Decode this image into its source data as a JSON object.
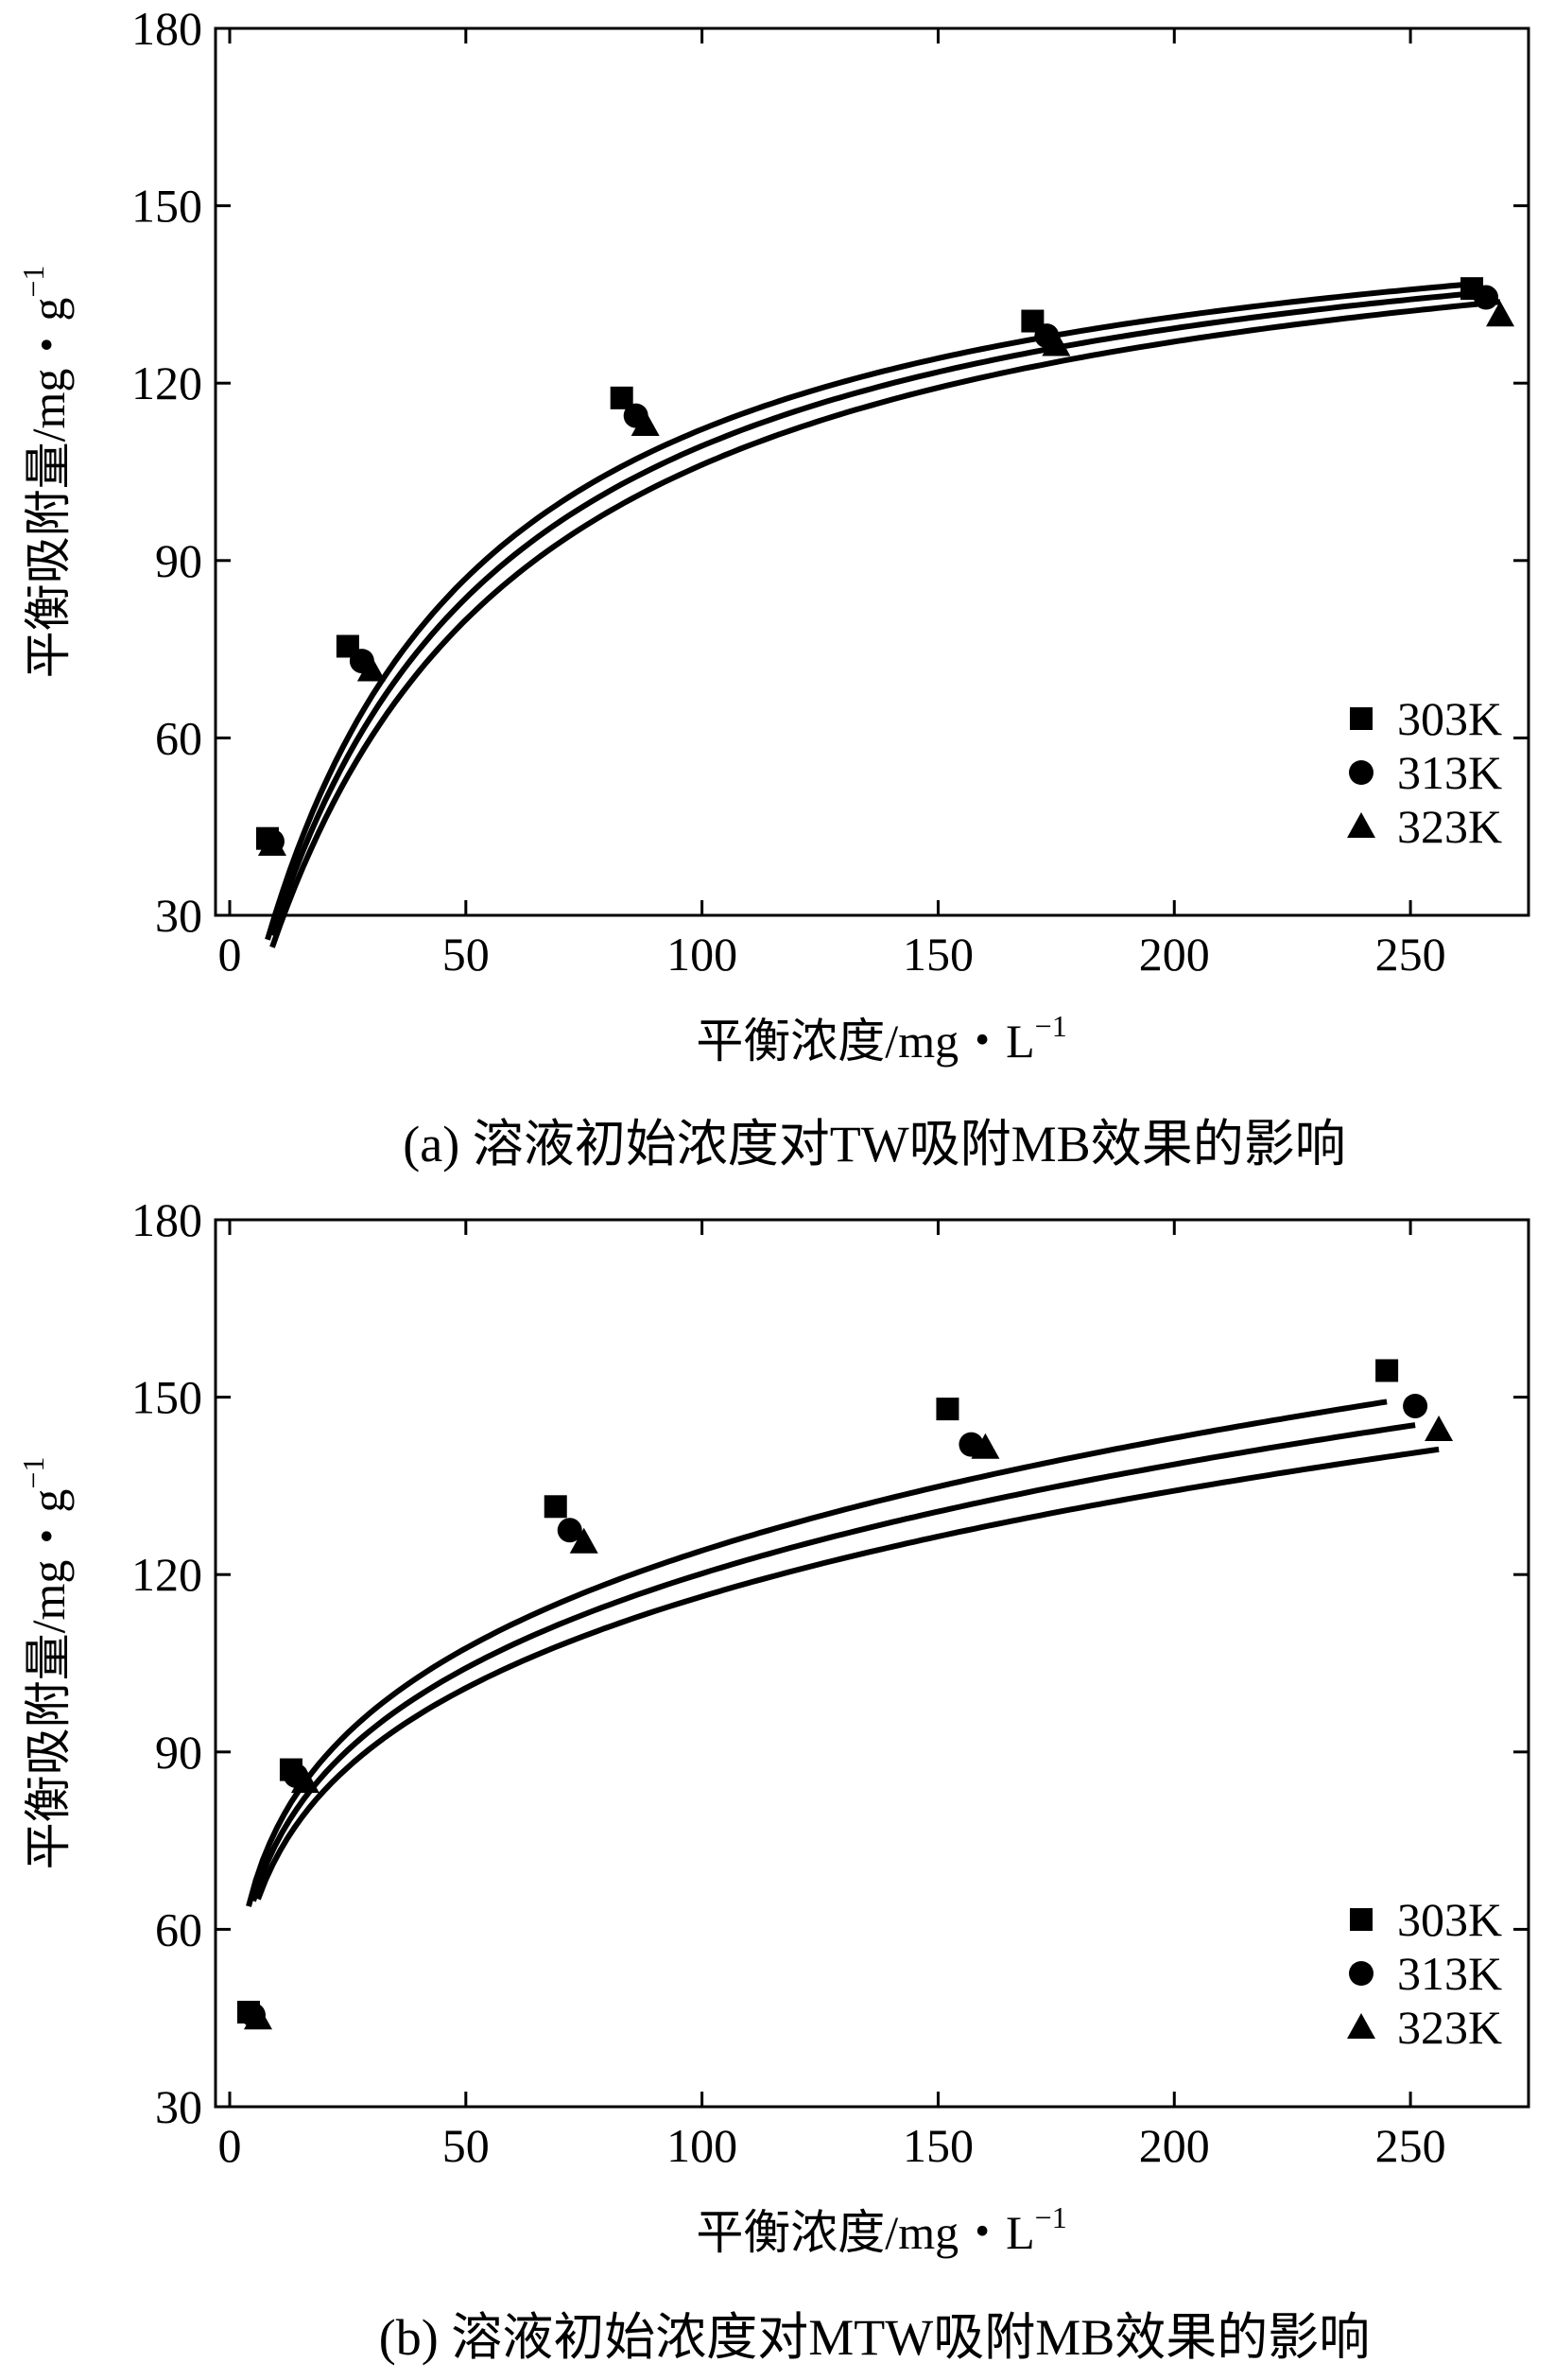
{
  "chart_data": [
    {
      "type": "scatter",
      "title": "(a) 溶液初始浓度对TW吸附MB效果的影响",
      "xlabel": "平衡浓度/mg・L",
      "xlabel_sup": "−1",
      "ylabel": "平衡吸附量/mg・g",
      "ylabel_sup": "−1",
      "xlim": [
        -3,
        275
      ],
      "ylim": [
        30,
        180
      ],
      "xticks": [
        0,
        50,
        100,
        150,
        200,
        250
      ],
      "yticks": [
        30,
        60,
        90,
        120,
        150,
        180
      ],
      "legend_position": "lower-right",
      "series": [
        {
          "name": "303K",
          "marker": "square",
          "fit": {
            "qm": 158,
            "kl": 0.0245
          },
          "points": [
            [
              8,
              43
            ],
            [
              25,
              75.5
            ],
            [
              83,
              117.5
            ],
            [
              170,
              130.5
            ],
            [
              263,
              136
            ]
          ]
        },
        {
          "name": "313K",
          "marker": "circle",
          "fit": {
            "qm": 158,
            "kl": 0.0225
          },
          "points": [
            [
              9,
              42.5
            ],
            [
              28,
              73
            ],
            [
              86,
              114.5
            ],
            [
              173,
              128
            ],
            [
              266,
              134.5
            ]
          ]
        },
        {
          "name": "323K",
          "marker": "triangle",
          "fit": {
            "qm": 158,
            "kl": 0.0205
          },
          "points": [
            [
              9,
              42
            ],
            [
              30,
              71.5
            ],
            [
              88,
              113
            ],
            [
              175,
              126.5
            ],
            [
              269,
              131.5
            ]
          ]
        }
      ]
    },
    {
      "type": "scatter",
      "title": "(b) 溶液初始浓度对MTW吸附MB效果的影响",
      "xlabel": "平衡浓度/mg・L",
      "xlabel_sup": "−1",
      "ylabel": "平衡吸附量/mg・g",
      "ylabel_sup": "−1",
      "xlim": [
        -3,
        275
      ],
      "ylim": [
        30,
        180
      ],
      "xticks": [
        0,
        50,
        100,
        150,
        200,
        250
      ],
      "yticks": [
        30,
        60,
        90,
        120,
        150,
        180
      ],
      "legend_position": "lower-right",
      "series": [
        {
          "name": "303K",
          "marker": "square",
          "fit": {
            "kf": 48,
            "n": 4.85
          },
          "points": [
            [
              4,
              46
            ],
            [
              13,
              87
            ],
            [
              69,
              131.5
            ],
            [
              152,
              148
            ],
            [
              245,
              154.5
            ]
          ]
        },
        {
          "name": "313K",
          "marker": "circle",
          "fit": {
            "kf": 46.5,
            "n": 4.85
          },
          "points": [
            [
              5,
              45.5
            ],
            [
              14,
              86
            ],
            [
              72,
              127.5
            ],
            [
              157,
              142
            ],
            [
              251,
              148.5
            ]
          ]
        },
        {
          "name": "323K",
          "marker": "triangle",
          "fit": {
            "kf": 45,
            "n": 4.85
          },
          "points": [
            [
              6,
              45
            ],
            [
              16,
              85
            ],
            [
              75,
              125.5
            ],
            [
              160,
              141.5
            ],
            [
              256,
              144.5
            ]
          ]
        }
      ]
    }
  ]
}
